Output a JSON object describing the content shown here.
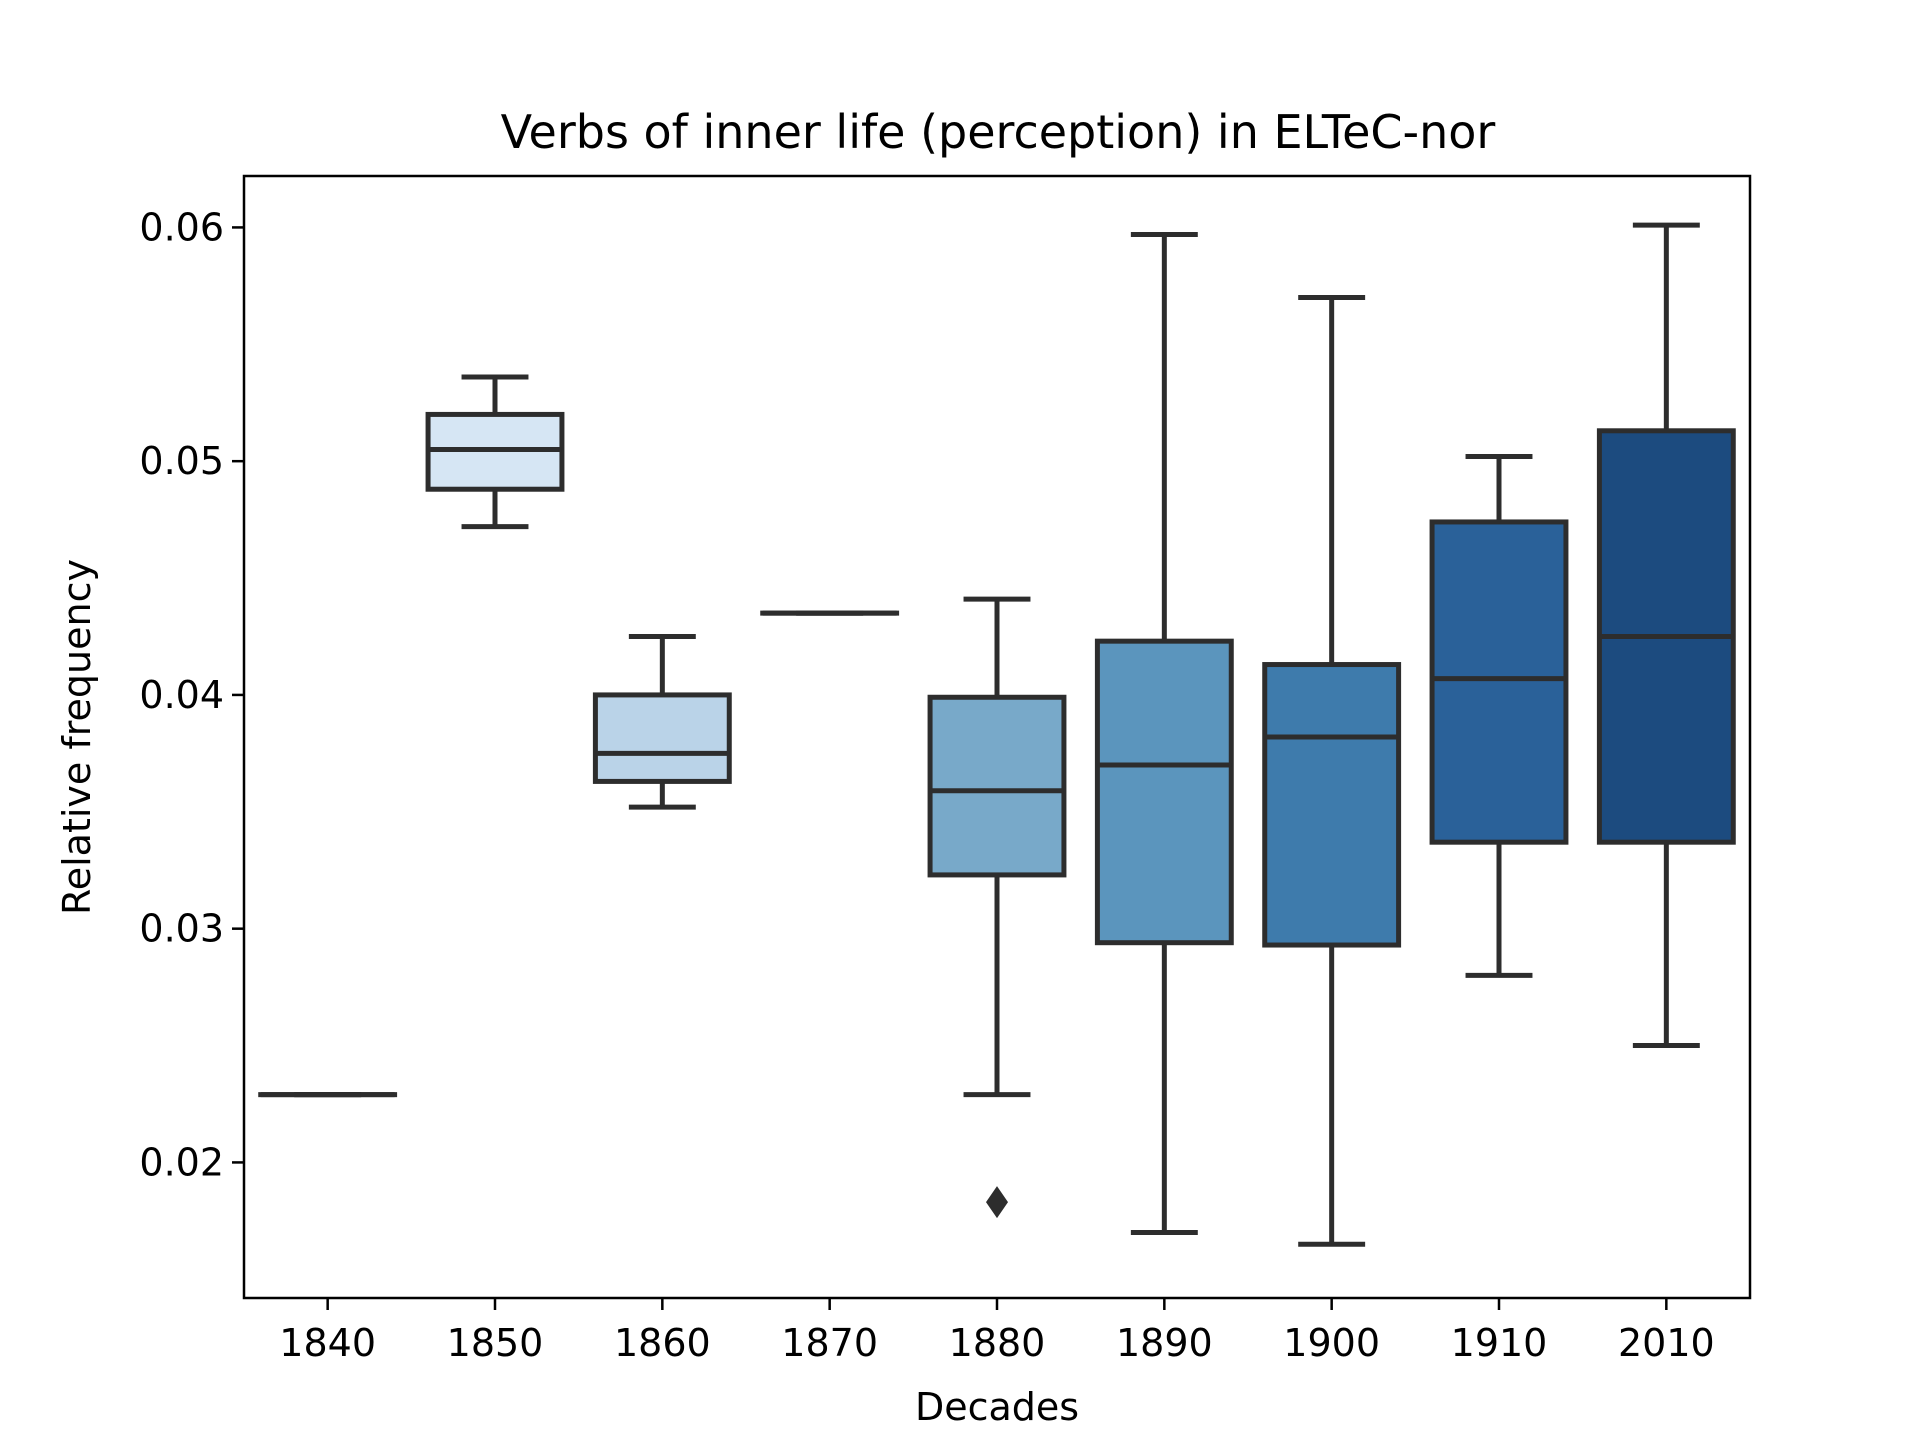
{
  "chart_data": {
    "type": "box",
    "title": "Verbs of inner life (perception) in ELTeC-nor",
    "xlabel": "Decades",
    "ylabel": "Relative frequency",
    "ylim": [
      0.0142,
      0.0622
    ],
    "yticks": [
      "0.02",
      "0.03",
      "0.04",
      "0.05",
      "0.06"
    ],
    "ytick_values": [
      0.02,
      0.03,
      0.04,
      0.05,
      0.06
    ],
    "grid": false,
    "categories": [
      "1840",
      "1850",
      "1860",
      "1870",
      "1880",
      "1890",
      "1900",
      "1910",
      "2010"
    ],
    "boxes": [
      {
        "decade": "1840",
        "whisker_low": 0.0229,
        "q1": 0.0229,
        "median": 0.0229,
        "q3": 0.0229,
        "whisker_high": 0.0229,
        "fliers": [],
        "color": "#f7fbff"
      },
      {
        "decade": "1850",
        "whisker_low": 0.0472,
        "q1": 0.0488,
        "median": 0.0505,
        "q3": 0.052,
        "whisker_high": 0.0536,
        "fliers": [],
        "color": "#d6e6f4"
      },
      {
        "decade": "1860",
        "whisker_low": 0.0352,
        "q1": 0.0363,
        "median": 0.0375,
        "q3": 0.04,
        "whisker_high": 0.0425,
        "fliers": [],
        "color": "#bad3e8"
      },
      {
        "decade": "1870",
        "whisker_low": 0.0435,
        "q1": 0.0435,
        "median": 0.0435,
        "q3": 0.0435,
        "whisker_high": 0.0435,
        "fliers": [],
        "color": "#9ac8e0"
      },
      {
        "decade": "1880",
        "whisker_low": 0.0229,
        "q1": 0.0323,
        "median": 0.0359,
        "q3": 0.0399,
        "whisker_high": 0.0441,
        "fliers": [
          0.0183
        ],
        "color": "#78a9c9"
      },
      {
        "decade": "1890",
        "whisker_low": 0.017,
        "q1": 0.0294,
        "median": 0.037,
        "q3": 0.0423,
        "whisker_high": 0.0597,
        "fliers": [],
        "color": "#5b95bd"
      },
      {
        "decade": "1900",
        "whisker_low": 0.0165,
        "q1": 0.0293,
        "median": 0.0382,
        "q3": 0.0413,
        "whisker_high": 0.057,
        "fliers": [],
        "color": "#3e7bac"
      },
      {
        "decade": "1910",
        "whisker_low": 0.028,
        "q1": 0.0337,
        "median": 0.0407,
        "q3": 0.0474,
        "whisker_high": 0.0502,
        "fliers": [],
        "color": "#2a6199"
      },
      {
        "decade": "2010",
        "whisker_low": 0.025,
        "q1": 0.0337,
        "median": 0.0425,
        "q3": 0.0513,
        "whisker_high": 0.0601,
        "fliers": [],
        "color": "#1c4b7f"
      }
    ]
  }
}
